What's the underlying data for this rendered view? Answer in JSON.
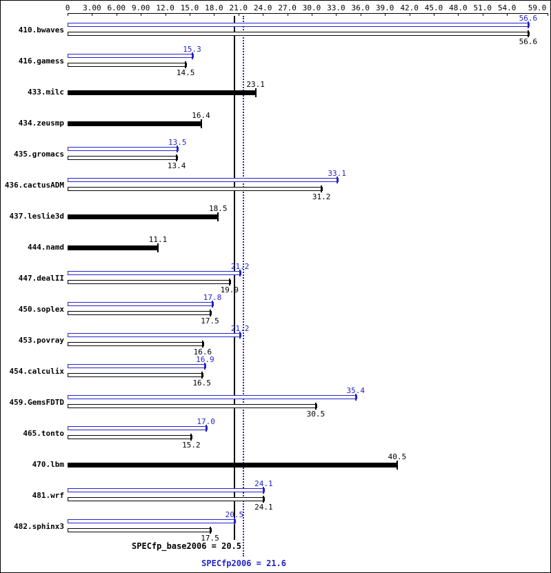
{
  "chart_data": {
    "type": "bar",
    "orientation": "horizontal",
    "legend_position": "none",
    "grid": false,
    "x_axis": {
      "min": 0,
      "max": 59,
      "tick_values": [
        0,
        3,
        6,
        9,
        12,
        15,
        18,
        21,
        24,
        27,
        30,
        33,
        36,
        39,
        42,
        45,
        48,
        51,
        54,
        59
      ],
      "tick_labels": [
        "0",
        "3.00",
        "6.00",
        "9.00",
        "12.0",
        "15.0",
        "18.0",
        "21.0",
        "24.0",
        "27.0",
        "30.0",
        "33.0",
        "36.0",
        "39.0",
        "42.0",
        "45.0",
        "48.0",
        "51.0",
        "54.0",
        "59.0"
      ]
    },
    "series": [
      {
        "name": "peak",
        "color": "#2222cc",
        "style": "thin-outline"
      },
      {
        "name": "base",
        "color": "#000000",
        "style": "thin-outline-or-bold"
      }
    ],
    "benchmarks": [
      {
        "name": "410.bwaves",
        "peak": 56.6,
        "peak_text": "56.6",
        "base": 56.6,
        "base_text": "56.6"
      },
      {
        "name": "416.gamess",
        "peak": 15.3,
        "peak_text": "15.3",
        "base": 14.5,
        "base_text": "14.5"
      },
      {
        "name": "433.milc",
        "peak": null,
        "peak_text": null,
        "base": 23.1,
        "base_text": "23.1"
      },
      {
        "name": "434.zeusmp",
        "peak": null,
        "peak_text": null,
        "base": 16.4,
        "base_text": "16.4"
      },
      {
        "name": "435.gromacs",
        "peak": 13.5,
        "peak_text": "13.5",
        "base": 13.4,
        "base_text": "13.4"
      },
      {
        "name": "436.cactusADM",
        "peak": 33.1,
        "peak_text": "33.1",
        "base": 31.2,
        "base_text": "31.2"
      },
      {
        "name": "437.leslie3d",
        "peak": null,
        "peak_text": null,
        "base": 18.5,
        "base_text": "18.5"
      },
      {
        "name": "444.namd",
        "peak": null,
        "peak_text": null,
        "base": 11.1,
        "base_text": "11.1"
      },
      {
        "name": "447.dealII",
        "peak": 21.2,
        "peak_text": "21.2",
        "base": 19.9,
        "base_text": "19.9"
      },
      {
        "name": "450.soplex",
        "peak": 17.8,
        "peak_text": "17.8",
        "base": 17.5,
        "base_text": "17.5"
      },
      {
        "name": "453.povray",
        "peak": 21.2,
        "peak_text": "21.2",
        "base": 16.6,
        "base_text": "16.6"
      },
      {
        "name": "454.calculix",
        "peak": 16.9,
        "peak_text": "16.9",
        "base": 16.5,
        "base_text": "16.5"
      },
      {
        "name": "459.GemsFDTD",
        "peak": 35.4,
        "peak_text": "35.4",
        "base": 30.5,
        "base_text": "30.5"
      },
      {
        "name": "465.tonto",
        "peak": 17.0,
        "peak_text": "17.0",
        "base": 15.2,
        "base_text": "15.2"
      },
      {
        "name": "470.lbm",
        "peak": null,
        "peak_text": null,
        "base": 40.5,
        "base_text": "40.5"
      },
      {
        "name": "481.wrf",
        "peak": 24.1,
        "peak_text": "24.1",
        "base": 24.1,
        "base_text": "24.1"
      },
      {
        "name": "482.sphinx3",
        "peak": 20.5,
        "peak_text": "20.5",
        "base": 17.5,
        "base_text": "17.5"
      }
    ],
    "reference_lines": [
      {
        "name": "base_mean",
        "label": "SPECfp_base2006 = 20.5",
        "value": 20.5,
        "style": "solid",
        "color": "#000000"
      },
      {
        "name": "peak_mean",
        "label": "SPECfp2006 = 21.6",
        "value": 21.6,
        "style": "dotted",
        "color": "#2222cc"
      }
    ]
  }
}
